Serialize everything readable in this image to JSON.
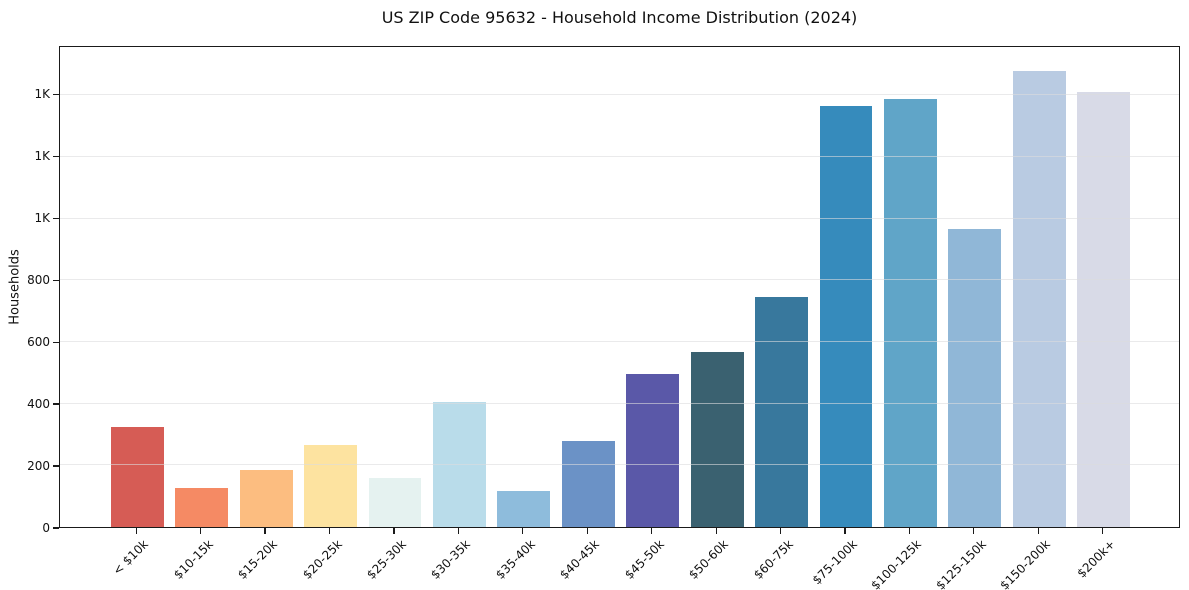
{
  "chart_data": {
    "type": "bar",
    "title": "US ZIP Code 95632 - Household Income Distribution (2024)",
    "xlabel": "",
    "ylabel": "Households",
    "categories": [
      "< $10k",
      "$10-15k",
      "$15-20k",
      "$20-25k",
      "$25-30k",
      "$30-35k",
      "$35-40k",
      "$40-45k",
      "$45-50k",
      "$50-60k",
      "$60-75k",
      "$75-100k",
      "$100-125k",
      "$125-150k",
      "$150-200k",
      "$200k+"
    ],
    "values": [
      325,
      126,
      184,
      267,
      158,
      404,
      116,
      278,
      497,
      568,
      747,
      1366,
      1386,
      966,
      1479,
      1410
    ],
    "bar_colors": [
      "#d65c55",
      "#f58a64",
      "#fcbd80",
      "#fde3a0",
      "#e5f2f0",
      "#b9dcea",
      "#8ebcdc",
      "#6b92c6",
      "#5a58a8",
      "#3a6170",
      "#38789d",
      "#368bbc",
      "#60a5c8",
      "#90b7d7",
      "#b9cbe2",
      "#d8dae7"
    ],
    "ylim": [
      0,
      1556
    ],
    "yticks": [
      0,
      200,
      400,
      600,
      800,
      1000,
      1200,
      1400
    ],
    "ytick_labels": [
      "0",
      "200",
      "400",
      "600",
      "800",
      "1K",
      "1K",
      "1K"
    ],
    "grid": "horizontal",
    "legend": "none",
    "colors": {
      "background": "#ffffff",
      "spine": "#1a1a1a",
      "gridline": "#dcdcde",
      "text": "#111111"
    }
  }
}
